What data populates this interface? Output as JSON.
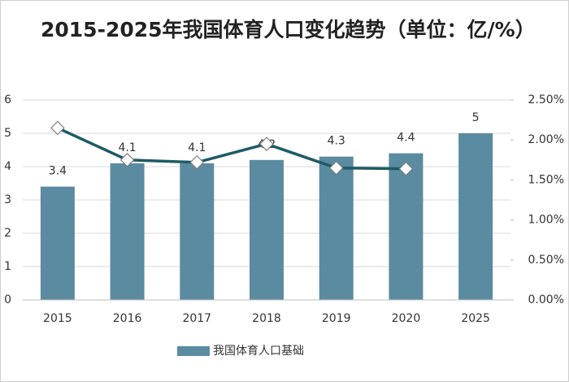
{
  "chart_data": {
    "type": "bar",
    "title": "2015-2025年我国体育人口变化趋势（单位：亿/%）",
    "categories": [
      "2015",
      "2016",
      "2017",
      "2018",
      "2019",
      "2020",
      "2025"
    ],
    "series": [
      {
        "name": "我国体育人口基础",
        "type": "bar",
        "color": "#5b8ba1",
        "values": [
          3.4,
          4.1,
          4.1,
          4.2,
          4.3,
          4.4,
          5
        ]
      },
      {
        "type": "line",
        "axis": "y2",
        "color": "#1e5b66",
        "values": [
          2.15,
          1.75,
          1.72,
          1.95,
          1.65,
          1.64,
          null
        ]
      }
    ],
    "ylim": [
      0,
      6
    ],
    "yticks": [
      0,
      1,
      2,
      3,
      4,
      5,
      6
    ],
    "y2lim": [
      0,
      2.5
    ],
    "y2ticks": [
      {
        "value": 0,
        "label": "0.00%"
      },
      {
        "value": 0.5,
        "label": "0.50%"
      },
      {
        "value": 1,
        "label": "1.00%"
      },
      {
        "value": 1.5,
        "label": "1.50%"
      },
      {
        "value": 2,
        "label": "2.00%"
      },
      {
        "value": 2.5,
        "label": "2.50%"
      }
    ],
    "grid": true,
    "legend": "bottom"
  }
}
